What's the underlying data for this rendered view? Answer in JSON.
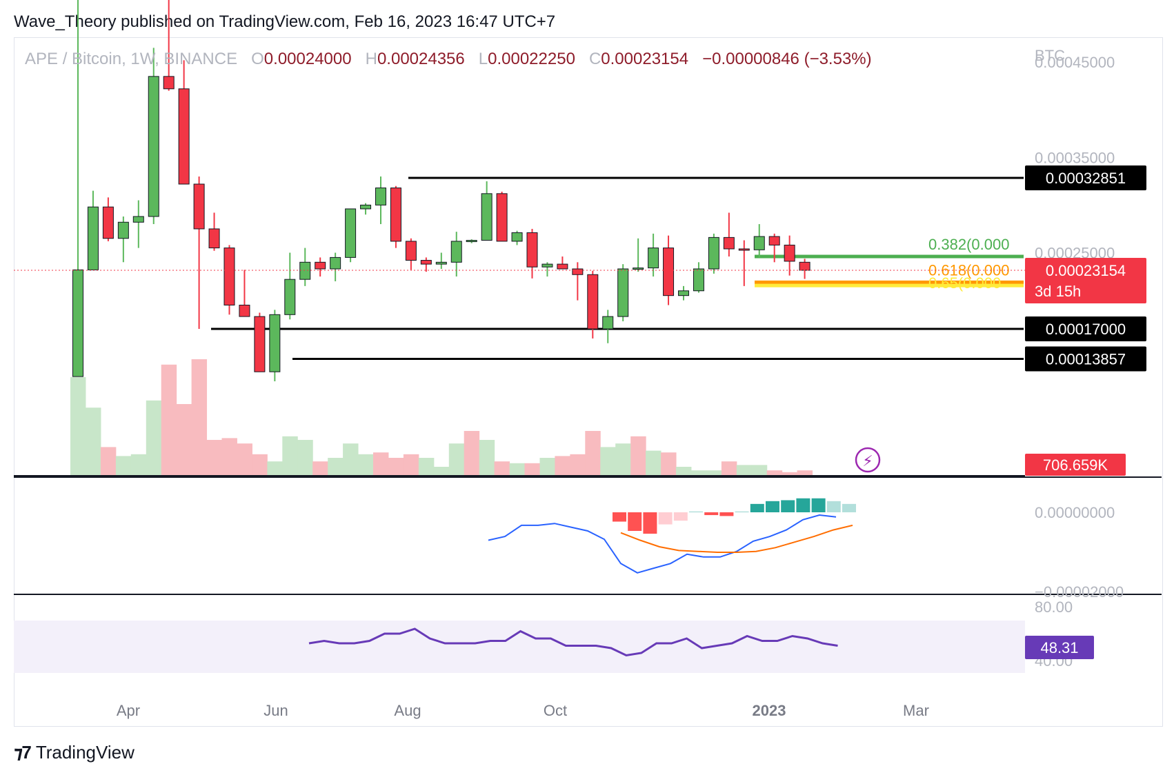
{
  "header": {
    "publisher": "Wave_Theory published on TradingView.com, Feb 16, 2023 16:47 UTC+7"
  },
  "legend": {
    "symbol": "APE / Bitcoin, 1W, BINANCE",
    "o_label": "O",
    "o_value": "0.00024000",
    "h_label": "H",
    "h_value": "0.00024356",
    "l_label": "L",
    "l_value": "0.00022250",
    "c_label": "C",
    "c_value": "0.00023154",
    "change": "−0.00000846 (−3.53%)"
  },
  "footer": {
    "brand": "TradingView"
  },
  "colors": {
    "up": "#5cb85c",
    "down": "#f23645",
    "macd": "#2962ff",
    "signal": "#ff6d00",
    "rsi": "#673ab7",
    "fib382": "#4caf50",
    "fib618": "#ff9800",
    "fib65": "#ffeb3b"
  },
  "chart_data": {
    "type": "candlestick",
    "price_axis": {
      "unit": "BTC",
      "ticks": [
        "0.00045000",
        "0.00035000",
        "0.00025000"
      ]
    },
    "x_ticks": [
      "Apr",
      "Jun",
      "Aug",
      "Oct",
      "2023",
      "Mar"
    ],
    "candles": [
      {
        "o": 0.00012,
        "h": 0.000625,
        "l": 0.00012,
        "c": 0.000232
      },
      {
        "o": 0.000232,
        "h": 0.000315,
        "l": 0.000232,
        "c": 0.000298
      },
      {
        "o": 0.000298,
        "h": 0.000308,
        "l": 0.000262,
        "c": 0.000265
      },
      {
        "o": 0.000265,
        "h": 0.000288,
        "l": 0.00024,
        "c": 0.000282
      },
      {
        "o": 0.000282,
        "h": 0.000305,
        "l": 0.000255,
        "c": 0.000288
      },
      {
        "o": 0.000288,
        "h": 0.000465,
        "l": 0.00028,
        "c": 0.000435
      },
      {
        "o": 0.000435,
        "h": 0.00054,
        "l": 0.00042,
        "c": 0.000422
      },
      {
        "o": 0.000422,
        "h": 0.000452,
        "l": 0.000322,
        "c": 0.000322
      },
      {
        "o": 0.000322,
        "h": 0.00033,
        "l": 0.00017,
        "c": 0.000275
      },
      {
        "o": 0.000275,
        "h": 0.000292,
        "l": 0.000252,
        "c": 0.000255
      },
      {
        "o": 0.000255,
        "h": 0.000258,
        "l": 0.000185,
        "c": 0.000195
      },
      {
        "o": 0.000195,
        "h": 0.000232,
        "l": 0.000185,
        "c": 0.000183
      },
      {
        "o": 0.000183,
        "h": 0.000187,
        "l": 0.000125,
        "c": 0.000125
      },
      {
        "o": 0.000125,
        "h": 0.00019,
        "l": 0.000115,
        "c": 0.000185
      },
      {
        "o": 0.000185,
        "h": 0.00025,
        "l": 0.00018,
        "c": 0.000222
      },
      {
        "o": 0.000222,
        "h": 0.000255,
        "l": 0.000215,
        "c": 0.00024
      },
      {
        "o": 0.00024,
        "h": 0.000245,
        "l": 0.000225,
        "c": 0.000233
      },
      {
        "o": 0.000233,
        "h": 0.00025,
        "l": 0.00022,
        "c": 0.000245
      },
      {
        "o": 0.000245,
        "h": 0.000295,
        "l": 0.00024,
        "c": 0.000296
      },
      {
        "o": 0.000296,
        "h": 0.000302,
        "l": 0.00029,
        "c": 0.0003
      },
      {
        "o": 0.0003,
        "h": 0.00033,
        "l": 0.00028,
        "c": 0.000318
      },
      {
        "o": 0.000318,
        "h": 0.00032,
        "l": 0.000255,
        "c": 0.000262
      },
      {
        "o": 0.000262,
        "h": 0.000265,
        "l": 0.000232,
        "c": 0.000242
      },
      {
        "o": 0.000242,
        "h": 0.000245,
        "l": 0.00023,
        "c": 0.000238
      },
      {
        "o": 0.000238,
        "h": 0.00025,
        "l": 0.000233,
        "c": 0.00024
      },
      {
        "o": 0.00024,
        "h": 0.000272,
        "l": 0.000225,
        "c": 0.000262
      },
      {
        "o": 0.000262,
        "h": 0.000264,
        "l": 0.00026,
        "c": 0.000263
      },
      {
        "o": 0.000263,
        "h": 0.000325,
        "l": 0.000263,
        "c": 0.000312
      },
      {
        "o": 0.000312,
        "h": 0.000314,
        "l": 0.000262,
        "c": 0.000262
      },
      {
        "o": 0.000262,
        "h": 0.000273,
        "l": 0.000258,
        "c": 0.000271
      },
      {
        "o": 0.000271,
        "h": 0.000275,
        "l": 0.000223,
        "c": 0.000235
      },
      {
        "o": 0.000235,
        "h": 0.00024,
        "l": 0.000225,
        "c": 0.000238
      },
      {
        "o": 0.000238,
        "h": 0.000246,
        "l": 0.000234,
        "c": 0.000233
      },
      {
        "o": 0.000233,
        "h": 0.00024,
        "l": 0.0002,
        "c": 0.000227
      },
      {
        "o": 0.000227,
        "h": 0.000231,
        "l": 0.00016,
        "c": 0.00017
      },
      {
        "o": 0.00017,
        "h": 0.00019,
        "l": 0.000155,
        "c": 0.000183
      },
      {
        "o": 0.000183,
        "h": 0.000238,
        "l": 0.000178,
        "c": 0.000233
      },
      {
        "o": 0.000233,
        "h": 0.000265,
        "l": 0.00023,
        "c": 0.000234
      },
      {
        "o": 0.000234,
        "h": 0.00027,
        "l": 0.000225,
        "c": 0.000255
      },
      {
        "o": 0.000255,
        "h": 0.000268,
        "l": 0.000195,
        "c": 0.000205
      },
      {
        "o": 0.000205,
        "h": 0.000215,
        "l": 0.0002,
        "c": 0.00021
      },
      {
        "o": 0.00021,
        "h": 0.00024,
        "l": 0.000208,
        "c": 0.000233
      },
      {
        "o": 0.000233,
        "h": 0.00027,
        "l": 0.000228,
        "c": 0.000266
      },
      {
        "o": 0.000266,
        "h": 0.000292,
        "l": 0.000246,
        "c": 0.000254
      },
      {
        "o": 0.000254,
        "h": 0.000263,
        "l": 0.000215,
        "c": 0.000253
      },
      {
        "o": 0.000253,
        "h": 0.00028,
        "l": 0.000245,
        "c": 0.000267
      },
      {
        "o": 0.000267,
        "h": 0.00027,
        "l": 0.00024,
        "c": 0.000258
      },
      {
        "o": 0.000258,
        "h": 0.000268,
        "l": 0.000226,
        "c": 0.000241
      },
      {
        "o": 0.00024,
        "h": 0.00024356,
        "l": 0.0002225,
        "c": 0.00023154
      }
    ],
    "levels": [
      {
        "label": "0.00032851",
        "value": 0.00032851
      },
      {
        "label": "0.00017000",
        "value": 0.00017
      },
      {
        "label": "0.00013857",
        "value": 0.00013857
      }
    ],
    "fib": [
      {
        "label": "0.382(0.000",
        "ratio": 0.382,
        "value": 0.000246
      },
      {
        "label": "0.618(0.000",
        "ratio": 0.618,
        "value": 0.000219
      },
      {
        "label": "0.65(0.000",
        "ratio": 0.65,
        "value": 0.0002155
      }
    ],
    "last_price": {
      "label": "0.00023154",
      "countdown": "3d 15h"
    },
    "volume": {
      "label": "706.659K",
      "values": [
        55,
        38,
        16,
        11,
        12,
        42,
        62,
        40,
        65,
        20,
        21,
        18,
        12,
        8,
        22,
        20,
        8,
        10,
        18,
        12,
        13,
        10,
        12,
        10,
        5,
        18,
        25,
        20,
        8,
        7,
        7,
        10,
        11,
        12,
        25,
        16,
        18,
        22,
        14,
        13,
        5,
        3,
        3,
        8,
        6,
        6,
        3,
        2,
        3
      ],
      "up": [
        1,
        1,
        0,
        1,
        1,
        1,
        0,
        0,
        0,
        0,
        0,
        0,
        0,
        1,
        1,
        1,
        0,
        1,
        1,
        1,
        0,
        0,
        0,
        1,
        1,
        1,
        0,
        1,
        0,
        1,
        0,
        1,
        0,
        0,
        0,
        1,
        1,
        0,
        1,
        0,
        1,
        1,
        1,
        0,
        1,
        1,
        0,
        0,
        0
      ]
    },
    "macd": {
      "ticks": [
        "0.00000000",
        "−0.00002000"
      ],
      "hist": [
        -1.0,
        -2.0,
        -2.3,
        -1.3,
        -0.9,
        0.1,
        -0.3,
        -0.4,
        0.1,
        0.9,
        1.2,
        1.3,
        1.5,
        1.5,
        1.2,
        0.9
      ],
      "macd_line": [
        -3.0,
        -2.6,
        -1.4,
        -1.4,
        -1.2,
        -1.6,
        -2.0,
        -2.9,
        -5.5,
        -6.5,
        -6.0,
        -5.5,
        -4.5,
        -4.8,
        -4.8,
        -4.2,
        -3.1,
        -2.6,
        -1.9,
        -0.8,
        -0.3,
        -0.5
      ],
      "signal_line": [
        -2.2,
        -3.0,
        -3.7,
        -4.1,
        -4.2,
        -4.3,
        -4.3,
        -4.2,
        -3.8,
        -3.2,
        -2.6,
        -1.9,
        -1.4
      ]
    },
    "rsi": {
      "label": "48.31",
      "ticks": [
        "80.00",
        "40.00"
      ],
      "values": [
        52,
        53,
        52,
        52,
        53,
        56,
        56,
        58,
        54,
        52,
        52,
        52,
        53,
        53,
        57,
        54,
        54,
        51,
        51,
        51,
        50,
        47,
        48,
        52,
        52,
        54,
        50,
        51,
        52,
        55,
        53,
        53,
        55,
        54,
        52,
        51
      ]
    }
  }
}
